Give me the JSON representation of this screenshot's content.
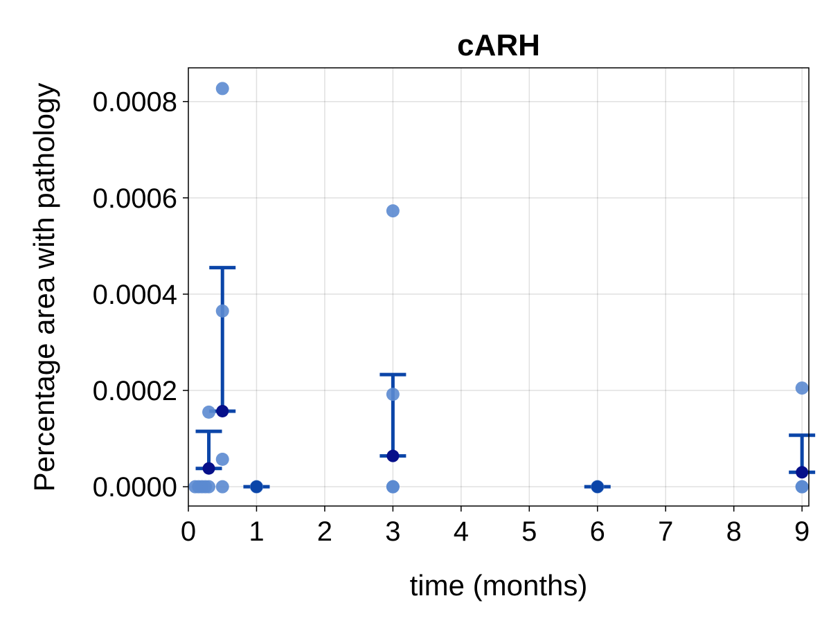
{
  "chart_data": {
    "type": "scatter",
    "title": "cARH",
    "xlabel": "time (months)",
    "ylabel": "Percentage area with pathology",
    "xlim": [
      0,
      9.1
    ],
    "ylim": [
      -4e-05,
      0.00087
    ],
    "xticks": [
      "0",
      "1",
      "2",
      "3",
      "4",
      "5",
      "6",
      "7",
      "8",
      "9"
    ],
    "yticks": [
      "0.0000",
      "0.0002",
      "0.0004",
      "0.0006",
      "0.0008"
    ],
    "grid": true,
    "colors": {
      "points": "#5b8ad0",
      "error_bars": "#0b45a8",
      "means": "#06108a"
    },
    "points": [
      {
        "x": 0.1,
        "y": 0
      },
      {
        "x": 0.15,
        "y": 0
      },
      {
        "x": 0.2,
        "y": 0
      },
      {
        "x": 0.25,
        "y": 0
      },
      {
        "x": 0.3,
        "y": 0
      },
      {
        "x": 0.3,
        "y": 0.000155
      },
      {
        "x": 0.5,
        "y": 0.000827
      },
      {
        "x": 0.5,
        "y": 0.000365
      },
      {
        "x": 0.5,
        "y": 5.7e-05
      },
      {
        "x": 0.5,
        "y": 0
      },
      {
        "x": 1,
        "y": 0
      },
      {
        "x": 1,
        "y": 0
      },
      {
        "x": 3,
        "y": 0.000573
      },
      {
        "x": 3,
        "y": 0.000192
      },
      {
        "x": 3,
        "y": 0
      },
      {
        "x": 3,
        "y": 0
      },
      {
        "x": 6,
        "y": 0
      },
      {
        "x": 6,
        "y": 0
      },
      {
        "x": 9,
        "y": 0.000205
      },
      {
        "x": 9,
        "y": 0
      },
      {
        "x": 9,
        "y": 0
      }
    ],
    "means": [
      {
        "x": 0.3,
        "mean": 3.8e-05,
        "upper": 0.000115
      },
      {
        "x": 0.5,
        "mean": 0.000157,
        "upper": 0.000455
      },
      {
        "x": 1,
        "mean": 0,
        "upper": 0
      },
      {
        "x": 3,
        "mean": 6.4e-05,
        "upper": 0.000233
      },
      {
        "x": 6,
        "mean": 0,
        "upper": 0
      },
      {
        "x": 9,
        "mean": 3e-05,
        "upper": 0.000107
      }
    ]
  }
}
